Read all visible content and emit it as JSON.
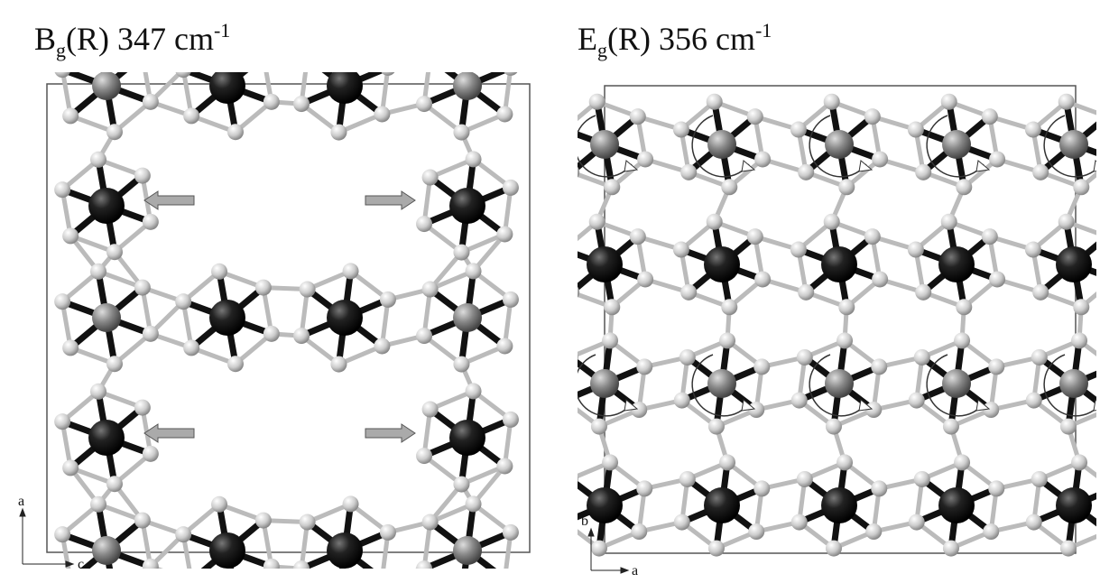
{
  "panels": [
    {
      "title": {
        "base": "B",
        "sub": "g",
        "main": "(R) 347 cm",
        "sup": "-1"
      },
      "axes": {
        "vertical": "a",
        "horizontal": "c"
      }
    },
    {
      "title": {
        "base": "E",
        "sub": "g",
        "main": "(R) 356 cm",
        "sup": "-1"
      },
      "axes": {
        "vertical": "b",
        "horizontal": "a"
      }
    }
  ]
}
